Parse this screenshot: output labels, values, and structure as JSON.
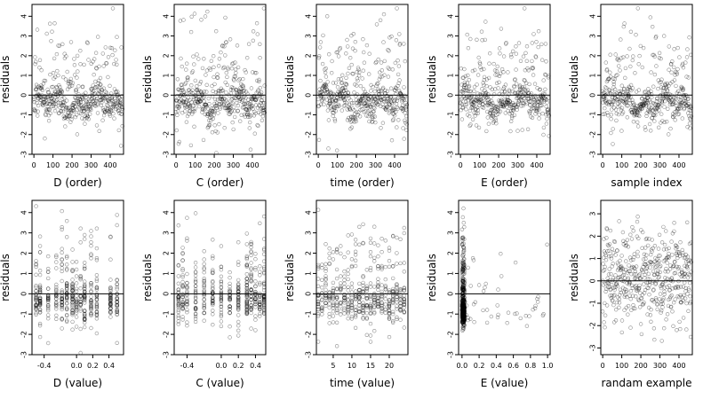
{
  "chart_data": [
    {
      "type": "scatter",
      "xlabel": "D (order)",
      "ylabel": "residuals",
      "xlim": [
        -10,
        470
      ],
      "ylim": [
        -3,
        4.6
      ],
      "xticks": [
        0,
        100,
        200,
        300,
        400
      ],
      "yticks": [
        -3,
        -2,
        -1,
        0,
        1,
        2,
        3,
        4
      ],
      "hline": 0,
      "pattern": "sorted",
      "seed": 11,
      "n": 470
    },
    {
      "type": "scatter",
      "xlabel": "C (order)",
      "ylabel": "residuals",
      "xlim": [
        -10,
        470
      ],
      "ylim": [
        -3,
        4.6
      ],
      "xticks": [
        0,
        100,
        200,
        300,
        400
      ],
      "yticks": [
        -3,
        -2,
        -1,
        0,
        1,
        2,
        3,
        4
      ],
      "hline": 0,
      "pattern": "sorted",
      "seed": 23,
      "n": 470
    },
    {
      "type": "scatter",
      "xlabel": "time (order)",
      "ylabel": "residuals",
      "xlim": [
        -10,
        470
      ],
      "ylim": [
        -3,
        4.6
      ],
      "xticks": [
        0,
        100,
        200,
        300,
        400
      ],
      "yticks": [
        -3,
        -2,
        -1,
        0,
        1,
        2,
        3,
        4
      ],
      "hline": 0,
      "pattern": "sorted",
      "seed": 37,
      "n": 470
    },
    {
      "type": "scatter",
      "xlabel": "E (order)",
      "ylabel": "residuals",
      "xlim": [
        -10,
        470
      ],
      "ylim": [
        -3,
        4.6
      ],
      "xticks": [
        0,
        100,
        200,
        300,
        400
      ],
      "yticks": [
        -3,
        -2,
        -1,
        0,
        1,
        2,
        3,
        4
      ],
      "hline": 0,
      "pattern": "sorted",
      "seed": 41,
      "n": 470
    },
    {
      "type": "scatter",
      "xlabel": "sample index",
      "ylabel": "residuals",
      "xlim": [
        -10,
        470
      ],
      "ylim": [
        -3,
        4.6
      ],
      "xticks": [
        0,
        100,
        200,
        300,
        400
      ],
      "yticks": [
        -3,
        -2,
        -1,
        0,
        1,
        2,
        3,
        4
      ],
      "hline": 0,
      "pattern": "sorted",
      "seed": 53,
      "n": 470
    },
    {
      "type": "scatter",
      "xlabel": "D (value)",
      "ylabel": "residuals",
      "xlim": [
        -0.55,
        0.58
      ],
      "ylim": [
        -3,
        4.6
      ],
      "xticks": [
        -0.4,
        0,
        0.2,
        0.4
      ],
      "xticklabels": [
        "-0.4",
        "0.0",
        "0.2",
        "0.4"
      ],
      "yticks": [
        -3,
        -2,
        -1,
        0,
        1,
        2,
        3,
        4
      ],
      "hline": 0,
      "pattern": "clustered",
      "seed": 61,
      "n": 470,
      "levels": [
        -0.5,
        -0.45,
        -0.35,
        -0.25,
        -0.18,
        -0.12,
        -0.05,
        0.0,
        0.05,
        0.1,
        0.18,
        0.25,
        0.42,
        0.5
      ]
    },
    {
      "type": "scatter",
      "xlabel": "C (value)",
      "ylabel": "residuals",
      "xlim": [
        -0.55,
        0.52
      ],
      "ylim": [
        -3,
        4.6
      ],
      "xticks": [
        -0.4,
        0,
        0.2,
        0.4
      ],
      "xticklabels": [
        "-0.4",
        "0.0",
        "0.2",
        "0.4"
      ],
      "yticks": [
        -3,
        -2,
        -1,
        0,
        1,
        2,
        3,
        4
      ],
      "hline": 0,
      "pattern": "clustered",
      "seed": 71,
      "n": 470,
      "levels": [
        -0.5,
        -0.45,
        -0.4,
        -0.3,
        -0.2,
        -0.1,
        0.0,
        0.1,
        0.2,
        0.3,
        0.35,
        0.4,
        0.45,
        0.5
      ]
    },
    {
      "type": "scatter",
      "xlabel": "time (value)",
      "ylabel": "residuals",
      "xlim": [
        0.5,
        25
      ],
      "ylim": [
        -3,
        4.6
      ],
      "xticks": [
        5,
        10,
        15,
        20
      ],
      "yticks": [
        -3,
        -2,
        -1,
        0,
        1,
        2,
        3,
        4
      ],
      "hline": 0,
      "pattern": "clustered",
      "seed": 83,
      "n": 470,
      "levels": [
        1,
        2,
        3,
        4,
        5,
        6,
        7,
        8,
        9,
        10,
        11,
        12,
        13,
        14,
        15,
        16,
        17,
        18,
        19,
        20,
        21,
        22,
        23,
        24
      ]
    },
    {
      "type": "scatter",
      "xlabel": "E (value)",
      "ylabel": "residuals",
      "xlim": [
        -0.04,
        1.03
      ],
      "ylim": [
        -3,
        4.6
      ],
      "xticks": [
        0,
        0.2,
        0.4,
        0.6,
        0.8,
        1.0
      ],
      "xticklabels": [
        "0.0",
        "0.2",
        "0.4",
        "0.6",
        "0.8",
        "1.0"
      ],
      "yticks": [
        -3,
        -2,
        -1,
        0,
        1,
        2,
        3,
        4
      ],
      "hline": 0,
      "pattern": "skewed",
      "seed": 97,
      "n": 470
    },
    {
      "type": "scatter",
      "xlabel": "randam example",
      "ylabel": "residuals",
      "xlim": [
        -10,
        470
      ],
      "ylim": [
        -3.3,
        3.6
      ],
      "xticks": [
        0,
        100,
        200,
        300,
        400
      ],
      "yticks": [
        -3,
        -2,
        -1,
        0,
        1,
        2,
        3
      ],
      "hline": 0,
      "pattern": "random",
      "seed": 101,
      "n": 470
    }
  ]
}
